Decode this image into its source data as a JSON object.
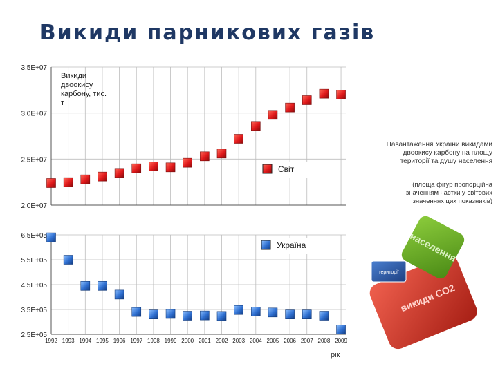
{
  "page": {
    "title": "Викиди парникових газів",
    "note_main": "Навантаження України викидами двоокису карбону на площу території та душу населення",
    "note_sub": "(площа фігур пропорційна значенням частки у світових значеннях цих показників)"
  },
  "chart_data": {
    "type": "scatter",
    "xlabel": "рік",
    "ylabel": "Викиди двоокису карбону, тис. т",
    "x": [
      "1992",
      "1993",
      "1994",
      "1995",
      "1996",
      "1997",
      "1998",
      "1999",
      "2000",
      "2001",
      "2002",
      "2003",
      "2004",
      "2005",
      "2006",
      "2007",
      "2008",
      "2009"
    ],
    "panels": [
      {
        "name": "Світ",
        "color": "#e0191b",
        "ylim": [
          20000000,
          35000000
        ],
        "yticks": [
          20000000,
          25000000,
          30000000,
          35000000
        ],
        "ytick_labels": [
          "2,0E+07",
          "2,5E+07",
          "3,0E+07",
          "3,5E+07"
        ],
        "values": [
          22400000,
          22500000,
          22800000,
          23100000,
          23500000,
          24000000,
          24200000,
          24100000,
          24600000,
          25300000,
          25600000,
          27200000,
          28600000,
          29800000,
          30600000,
          31400000,
          32100000,
          32000000
        ]
      },
      {
        "name": "Україна",
        "color": "#2f6fd0",
        "ylim": [
          250000,
          650000
        ],
        "yticks": [
          250000,
          350000,
          450000,
          550000,
          650000
        ],
        "ytick_labels": [
          "2,5E+05",
          "3,5E+05",
          "4,5E+05",
          "5,5E+05",
          "6,5E+05"
        ],
        "values": [
          640000,
          550000,
          445000,
          445000,
          410000,
          340000,
          330000,
          332000,
          325000,
          326000,
          324000,
          348000,
          342000,
          338000,
          330000,
          330000,
          325000,
          270000
        ]
      }
    ],
    "grid": true
  },
  "shapes": {
    "green_label": "населення",
    "red_label": "викиди CO2",
    "blue_label": "території",
    "green_color": "#6ab023",
    "red_color": "#d93a2b",
    "blue_color": "#2e5fb3"
  }
}
